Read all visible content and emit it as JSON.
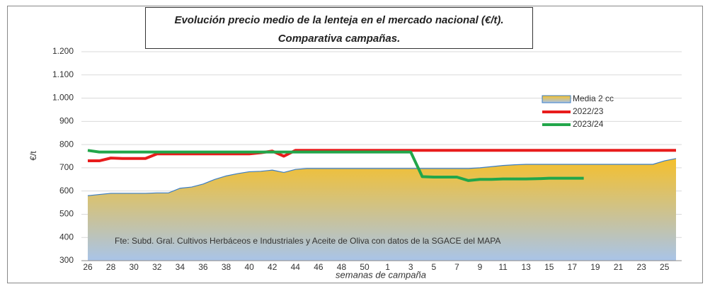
{
  "chart_data": {
    "type": "line",
    "title": [
      "Evolución precio medio de la lenteja en el mercado nacional (€/t).",
      "Comparativa campañas."
    ],
    "ylabel": "€/t",
    "xlabel": "semanas de campaña",
    "annotation": "Fte: Subd. Gral. Cultivos Herbáceos e Industriales y Aceite de Oliva con datos de la SGACE del MAPA",
    "categories": [
      26,
      null,
      28,
      null,
      30,
      null,
      32,
      null,
      34,
      null,
      36,
      null,
      38,
      null,
      40,
      null,
      42,
      null,
      44,
      null,
      46,
      null,
      48,
      null,
      50,
      null,
      1,
      null,
      3,
      null,
      5,
      null,
      7,
      null,
      9,
      null,
      11,
      null,
      13,
      null,
      15,
      null,
      17,
      null,
      19,
      null,
      21,
      null,
      23,
      null,
      25,
      null
    ],
    "ylim": [
      300,
      1200
    ],
    "yticks": [
      300,
      400,
      500,
      600,
      700,
      800,
      900,
      {
        "value": 1000,
        "label": "1.000"
      },
      {
        "value": 1100,
        "label": "1.100"
      },
      {
        "value": 1200,
        "label": "1.200"
      }
    ],
    "grid": true,
    "legend": "upper right",
    "series": [
      {
        "name": "Media 2 cc",
        "kind": "area",
        "color": "#f5c02c",
        "color2": "#a9c4e8",
        "line_color": "#3b7dc4",
        "values": [
          580,
          585,
          590,
          590,
          590,
          590,
          592,
          592,
          612,
          617,
          630,
          650,
          665,
          675,
          683,
          685,
          690,
          680,
          693,
          697,
          697,
          697,
          697,
          697,
          697,
          697,
          697,
          697,
          697,
          697,
          697,
          697,
          697,
          697,
          700,
          705,
          710,
          713,
          715,
          715,
          715,
          715,
          715,
          715,
          715,
          715,
          715,
          715,
          715,
          715,
          730,
          740
        ]
      },
      {
        "name": "2022/23",
        "kind": "line",
        "color": "#e81c1c",
        "values": [
          730,
          730,
          742,
          740,
          740,
          740,
          760,
          760,
          760,
          760,
          760,
          760,
          760,
          760,
          760,
          765,
          772,
          750,
          775,
          775,
          775,
          775,
          775,
          775,
          775,
          775,
          775,
          775,
          775,
          775,
          775,
          775,
          775,
          775,
          775,
          775,
          775,
          775,
          775,
          775,
          775,
          775,
          775,
          775,
          775,
          775,
          775,
          775,
          775,
          775,
          775,
          775
        ]
      },
      {
        "name": "2023/24",
        "kind": "line",
        "color": "#22a64a",
        "values": [
          775,
          768,
          768,
          768,
          768,
          768,
          768,
          768,
          768,
          768,
          768,
          768,
          768,
          768,
          768,
          768,
          768,
          768,
          768,
          768,
          768,
          768,
          768,
          768,
          768,
          768,
          768,
          768,
          768,
          662,
          660,
          660,
          660,
          645,
          650,
          650,
          652,
          652,
          652,
          653,
          655,
          655,
          655,
          655,
          null,
          null,
          null,
          null,
          null,
          null,
          null,
          null
        ]
      }
    ]
  }
}
